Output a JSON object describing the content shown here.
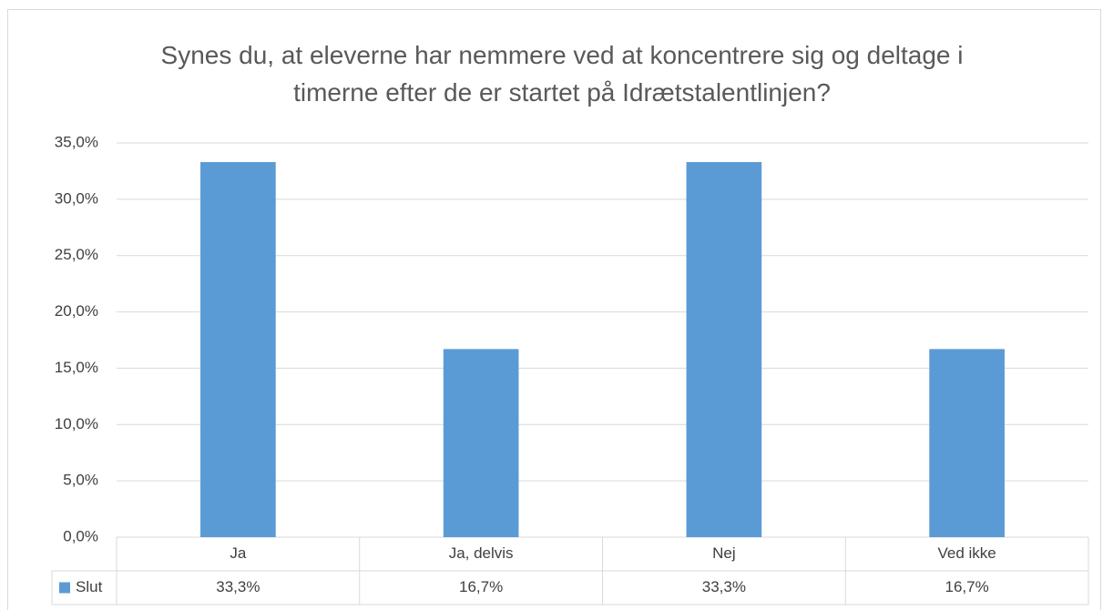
{
  "chart_data": {
    "type": "bar",
    "title": "Synes du, at eleverne har nemmere ved at koncentrere sig og deltage i timerne efter de er startet på Idrætstalentlinjen?",
    "categories": [
      "Ja",
      "Ja, delvis",
      "Nej",
      "Ved ikke"
    ],
    "series": [
      {
        "name": "Slut",
        "color": "#5b9bd5",
        "values": [
          33.3,
          16.7,
          33.3,
          16.7
        ],
        "value_labels": [
          "33,3%",
          "16,7%",
          "33,3%",
          "16,7%"
        ]
      }
    ],
    "ylim": [
      0,
      35
    ],
    "yticks": [
      {
        "value": 0,
        "label": "0,0%"
      },
      {
        "value": 5,
        "label": "5,0%"
      },
      {
        "value": 10,
        "label": "10,0%"
      },
      {
        "value": 15,
        "label": "15,0%"
      },
      {
        "value": 20,
        "label": "20,0%"
      },
      {
        "value": 25,
        "label": "25,0%"
      },
      {
        "value": 30,
        "label": "30,0%"
      },
      {
        "value": 35,
        "label": "35,0%"
      }
    ],
    "grid": true
  }
}
